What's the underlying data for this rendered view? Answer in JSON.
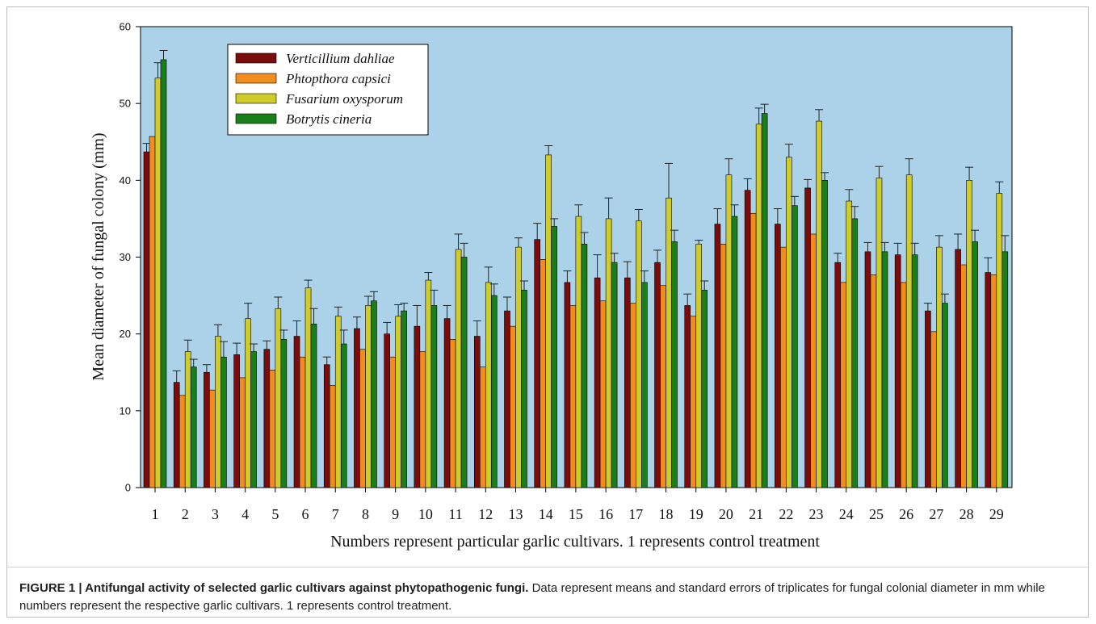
{
  "chart_data": {
    "type": "bar",
    "xlabel": "Numbers represent particular garlic cultivars. 1 represents control treatment",
    "ylabel": "Mean diameter of fungal colony (mm)",
    "ylim": [
      0,
      60
    ],
    "yticks": [
      "0",
      "10",
      "20",
      "30",
      "40",
      "50",
      "60"
    ],
    "grid": false,
    "legend_position": "top-left",
    "background_color": "#abd2e8",
    "categories": [
      "1",
      "2",
      "3",
      "4",
      "5",
      "6",
      "7",
      "8",
      "9",
      "10",
      "11",
      "12",
      "13",
      "14",
      "15",
      "16",
      "17",
      "18",
      "19",
      "20",
      "21",
      "22",
      "23",
      "24",
      "25",
      "26",
      "27",
      "28",
      "29"
    ],
    "series": [
      {
        "name": "Verticillium dahliae",
        "color": "#7b0c0c",
        "values": [
          43.7,
          13.7,
          15.0,
          17.3,
          18.0,
          19.7,
          16.0,
          20.7,
          20.0,
          21.0,
          22.0,
          19.7,
          23.0,
          32.3,
          26.7,
          27.3,
          27.3,
          29.3,
          23.7,
          34.3,
          38.7,
          34.3,
          39.0,
          29.3,
          30.7,
          30.3,
          23.0,
          31.0,
          28.0
        ],
        "errors": [
          1.1,
          1.5,
          1.0,
          1.5,
          1.1,
          2.0,
          1.0,
          1.5,
          1.5,
          2.7,
          1.7,
          2.0,
          1.8,
          2.1,
          1.5,
          3.0,
          2.1,
          1.6,
          1.5,
          2.0,
          1.5,
          2.0,
          1.1,
          1.2,
          1.2,
          1.5,
          1.0,
          2.0,
          1.9
        ]
      },
      {
        "name": "Phtopthora capsici",
        "color": "#f28c1e",
        "values": [
          45.7,
          12.0,
          12.7,
          14.3,
          15.3,
          17.0,
          13.3,
          18.0,
          17.0,
          17.7,
          19.3,
          15.7,
          21.0,
          29.7,
          23.7,
          24.3,
          24.0,
          26.3,
          22.3,
          31.7,
          35.7,
          31.3,
          33.0,
          26.7,
          27.7,
          26.7,
          20.3,
          29.0,
          27.7
        ]
      },
      {
        "name": "Fusarium oxysporum",
        "color": "#cfcb2a",
        "values": [
          53.3,
          17.7,
          19.7,
          22.0,
          23.3,
          26.0,
          22.3,
          23.7,
          22.3,
          27.0,
          31.0,
          26.7,
          31.3,
          43.3,
          35.3,
          35.0,
          34.7,
          37.7,
          31.7,
          40.7,
          47.3,
          43.0,
          47.7,
          37.3,
          40.3,
          40.7,
          31.3,
          40.0,
          38.3
        ],
        "errors": [
          2.0,
          1.5,
          1.5,
          2.0,
          1.5,
          1.0,
          1.2,
          1.2,
          1.5,
          1.0,
          2.0,
          2.0,
          1.2,
          1.2,
          1.5,
          2.7,
          1.5,
          4.5,
          0.5,
          2.1,
          2.1,
          1.7,
          1.5,
          1.5,
          1.5,
          2.1,
          1.5,
          1.7,
          1.5
        ]
      },
      {
        "name": "Botrytis cineria",
        "color": "#1a7f1a",
        "values": [
          55.7,
          15.7,
          17.0,
          17.7,
          19.3,
          21.3,
          18.7,
          24.3,
          23.0,
          23.7,
          30.0,
          25.0,
          25.7,
          34.0,
          31.7,
          29.3,
          26.7,
          32.0,
          25.7,
          35.3,
          48.7,
          36.7,
          40.0,
          35.0,
          30.7,
          30.3,
          24.0,
          32.0,
          30.7
        ],
        "errors": [
          1.2,
          1.0,
          2.0,
          1.0,
          1.2,
          2.0,
          1.8,
          1.2,
          1.0,
          2.0,
          1.8,
          1.5,
          1.2,
          1.0,
          1.5,
          1.2,
          1.5,
          1.5,
          1.2,
          1.5,
          1.2,
          1.2,
          1.0,
          1.6,
          1.2,
          1.5,
          1.2,
          1.5,
          2.1
        ]
      }
    ]
  },
  "caption": {
    "title": "FIGURE 1 | Antifungal activity of selected garlic cultivars against phytopathogenic fungi.",
    "body": " Data represent means and standard errors of triplicates for fungal colonial diameter in mm while numbers represent the respective garlic cultivars. 1 represents control treatment."
  }
}
